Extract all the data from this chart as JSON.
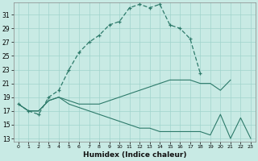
{
  "xlabel": "Humidex (Indice chaleur)",
  "bg_color": "#c8eae4",
  "line_color": "#2d7a6a",
  "grid_color": "#a0d4cc",
  "curve1_x": [
    0,
    1,
    2,
    3,
    4,
    5,
    6,
    7,
    8,
    9,
    10,
    11,
    12,
    13,
    14,
    15,
    16,
    17,
    18
  ],
  "curve1_y": [
    18,
    17,
    16.5,
    19,
    20,
    23,
    25.5,
    27,
    28,
    29.5,
    30,
    32,
    32.5,
    32,
    32.5,
    29.5,
    29,
    27.5,
    22.5
  ],
  "curve2_x": [
    0,
    1,
    2,
    3,
    4,
    5,
    6,
    7,
    8,
    9,
    10,
    11,
    12,
    13,
    14,
    15,
    16,
    17,
    18,
    19,
    20,
    21
  ],
  "curve2_y": [
    18,
    17,
    17,
    18.5,
    19,
    18.5,
    18,
    18,
    18,
    18.5,
    19,
    19.5,
    20,
    20.5,
    21,
    21.5,
    21.5,
    21.5,
    21,
    21,
    20,
    21.5
  ],
  "curve3_x": [
    0,
    1,
    2,
    3,
    4,
    5,
    6,
    7,
    8,
    9,
    10,
    11,
    12,
    13,
    14,
    15,
    16,
    17,
    18,
    19,
    20,
    21,
    22,
    23
  ],
  "curve3_y": [
    18,
    17,
    17,
    18.5,
    19,
    18,
    17.5,
    17,
    16.5,
    16,
    15.5,
    15,
    14.5,
    14.5,
    14,
    14,
    14,
    14,
    14,
    13.5,
    16.5,
    13,
    16,
    13
  ],
  "yticks": [
    13,
    15,
    17,
    19,
    21,
    23,
    25,
    27,
    29,
    31
  ],
  "xlim": [
    -0.5,
    23.5
  ],
  "ylim": [
    12.5,
    32.8
  ]
}
